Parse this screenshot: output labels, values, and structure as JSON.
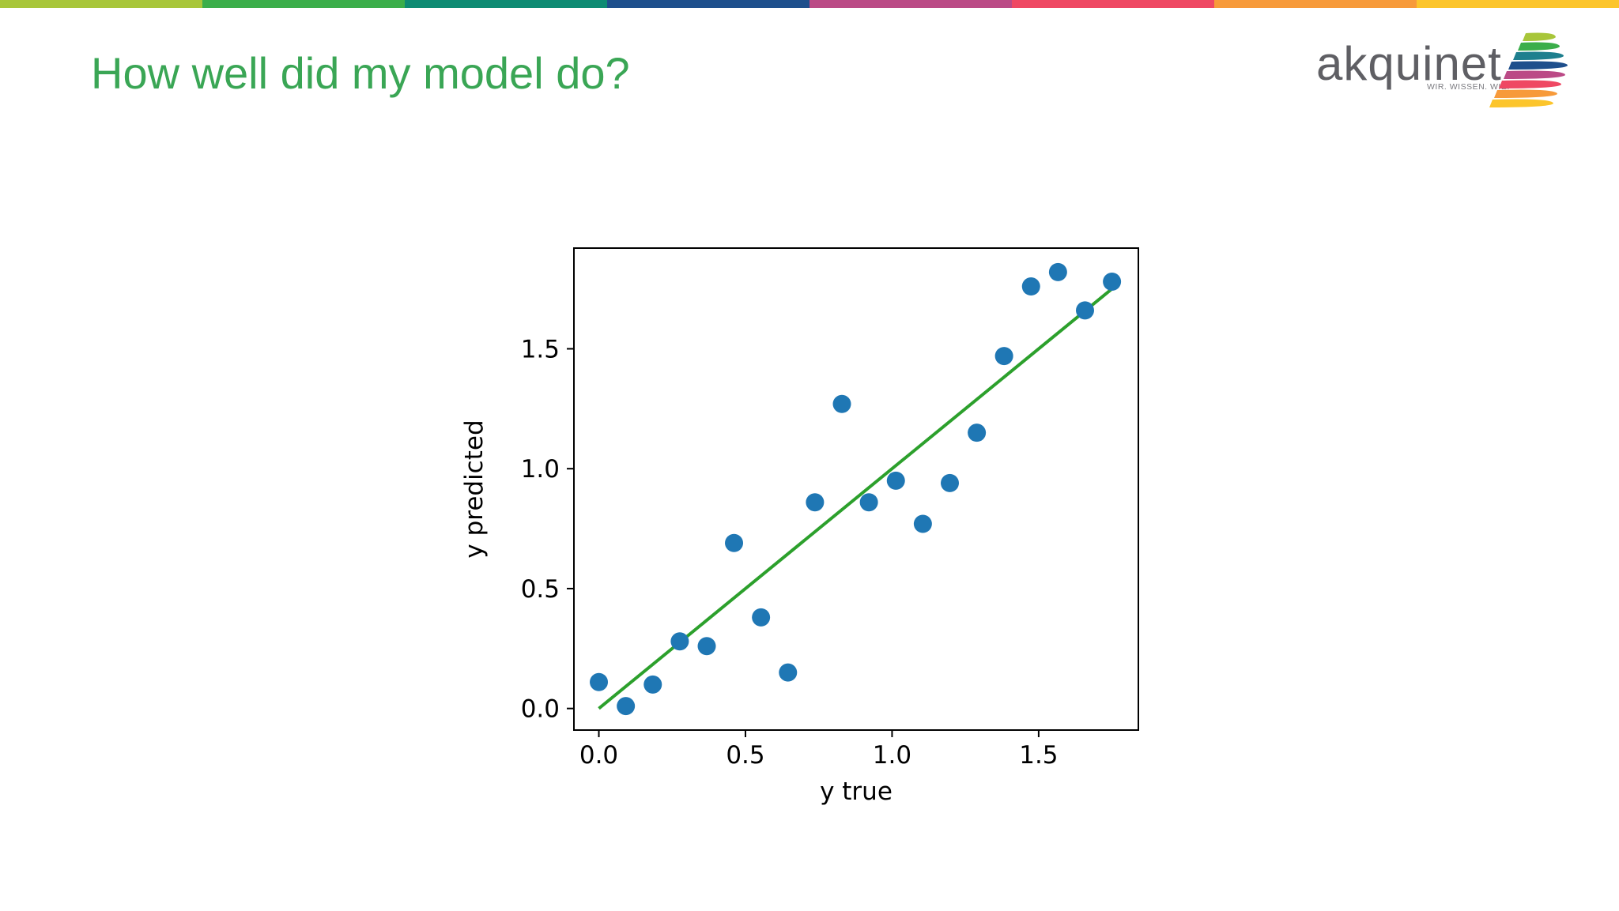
{
  "slide": {
    "title": "How well did my model do?"
  },
  "top_bar_colors": [
    "#a8c63a",
    "#3bae4a",
    "#0e8b73",
    "#1e4f8c",
    "#bb4a86",
    "#ef4863",
    "#f79a3a",
    "#fcc52c"
  ],
  "logo": {
    "word": "akquinet",
    "tagline": "WIR. WISSEN. WIE.",
    "stripe_colors": [
      "#a8c63a",
      "#3bae4a",
      "#1e7f8e",
      "#1e4f8c",
      "#bb4a86",
      "#ef4863",
      "#f79a3a",
      "#fcc52c"
    ]
  },
  "colors": {
    "points": "#1f77b4",
    "fit_line": "#2ca02c",
    "title": "#3aa655"
  },
  "chart_data": {
    "type": "scatter",
    "title": "",
    "xlabel": "y true",
    "ylabel": "y predicted",
    "xlim": [
      -0.085,
      1.84
    ],
    "ylim": [
      -0.09,
      1.92
    ],
    "x_ticks": [
      0.0,
      0.5,
      1.0,
      1.5
    ],
    "y_ticks": [
      0.0,
      0.5,
      1.0,
      1.5
    ],
    "x_tick_labels": [
      "0.0",
      "0.5",
      "1.0",
      "1.5"
    ],
    "y_tick_labels": [
      "0.0",
      "0.5",
      "1.0",
      "1.5"
    ],
    "grid": false,
    "points": {
      "x": [
        0.0,
        0.092,
        0.184,
        0.276,
        0.368,
        0.461,
        0.553,
        0.645,
        0.737,
        0.829,
        0.921,
        1.013,
        1.105,
        1.197,
        1.289,
        1.382,
        1.474,
        1.566,
        1.658,
        1.75
      ],
      "y": [
        0.11,
        0.01,
        0.1,
        0.28,
        0.26,
        0.69,
        0.38,
        0.15,
        0.86,
        1.27,
        0.86,
        0.95,
        0.77,
        0.94,
        1.15,
        1.47,
        1.76,
        1.82,
        1.66,
        1.78
      ]
    },
    "line": {
      "x": [
        0.0,
        1.75
      ],
      "y": [
        0.0,
        1.75
      ]
    }
  }
}
